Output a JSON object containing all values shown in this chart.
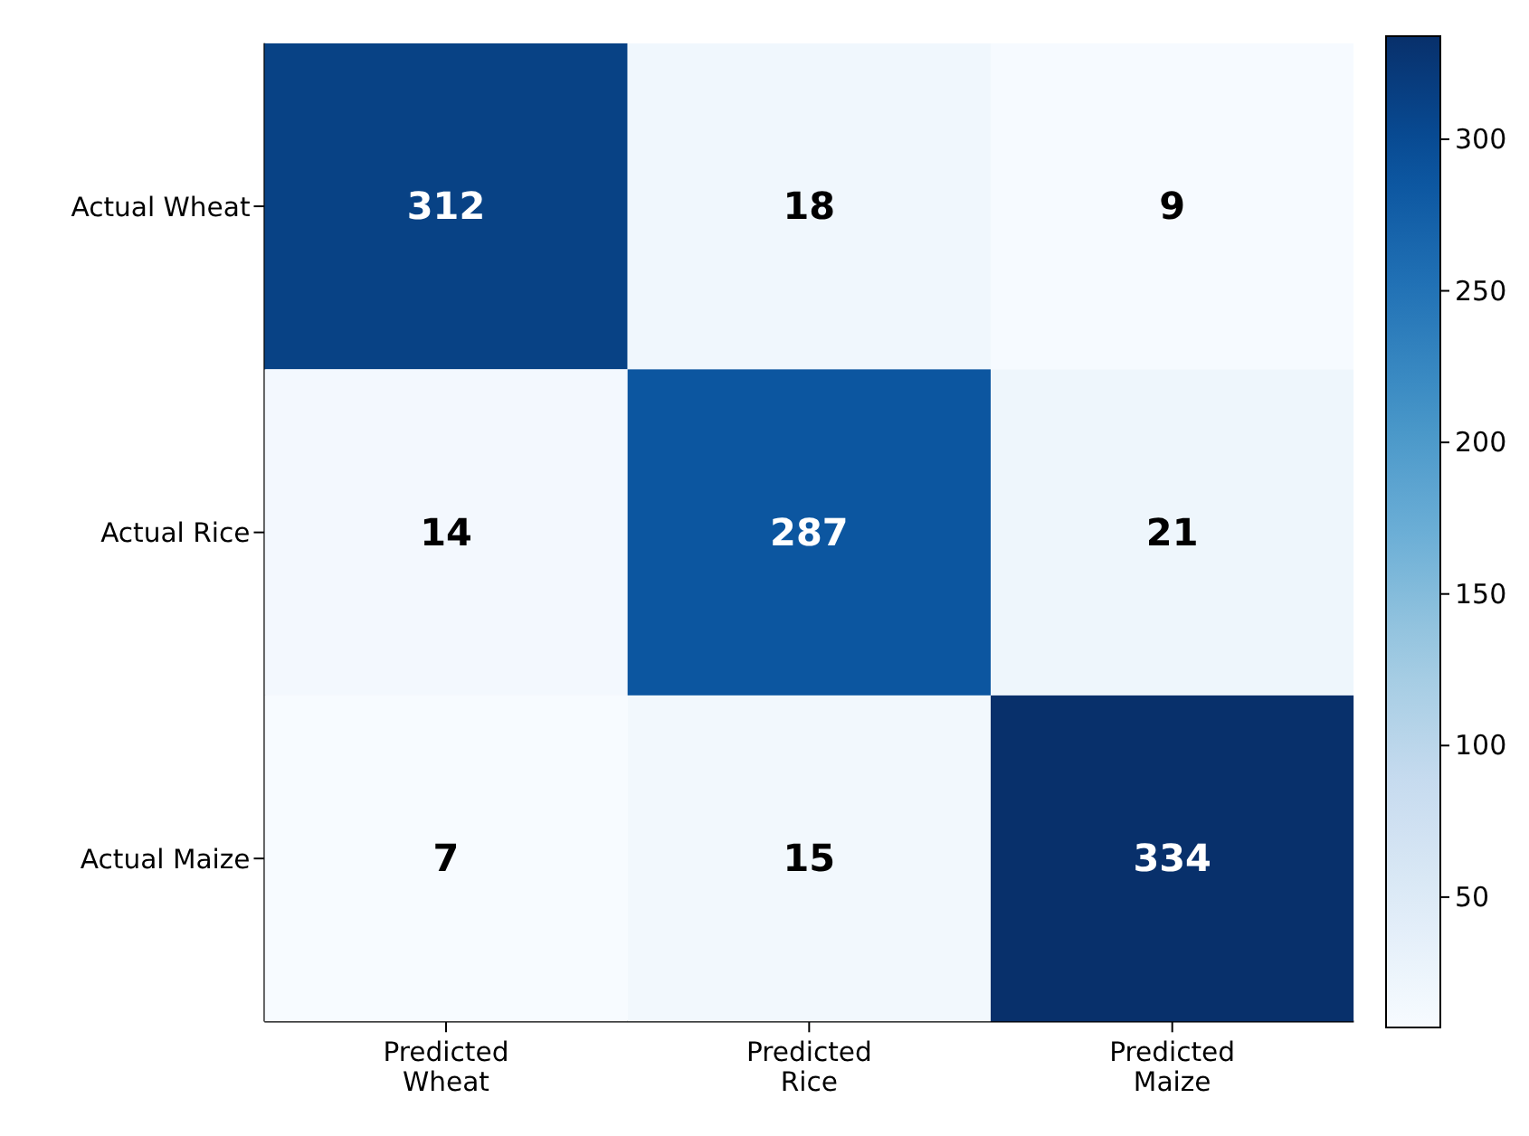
{
  "chart_data": {
    "type": "heatmap",
    "categories": [
      "Predicted Wheat",
      "Predicted Rice",
      "Predicted Maize"
    ],
    "y_categories": [
      "Actual Wheat",
      "Actual Rice",
      "Actual Maize"
    ],
    "cells": [
      [
        312,
        18,
        9
      ],
      [
        14,
        287,
        21
      ],
      [
        7,
        15,
        334
      ]
    ],
    "data_labels": true,
    "clim": [
      7,
      334
    ],
    "cticks": [
      50,
      100,
      150,
      200,
      250,
      300
    ]
  }
}
